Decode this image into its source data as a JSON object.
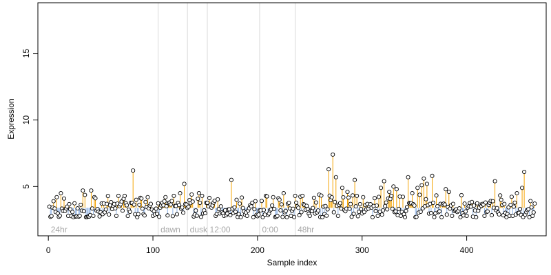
{
  "chart_data": {
    "type": "scatter",
    "title": "",
    "xlabel": "Sample index",
    "ylabel": "Expression",
    "xlim": [
      -10,
      476
    ],
    "ylim": [
      1.3,
      18.8
    ],
    "baseline": 3.4,
    "x_ticks": [
      0,
      100,
      200,
      300,
      400
    ],
    "y_ticks": [
      5,
      10,
      15
    ],
    "grid": false,
    "legend": "none",
    "colors": {
      "above": "#f5a300",
      "below": "#8fb3e6",
      "point_fill": "#ffffff",
      "point_stroke": "#000000",
      "divider": "#d9d9d9",
      "region_label": "#a8a8a8"
    },
    "regions": [
      {
        "label": "24hr",
        "start": 1
      },
      {
        "label": "dawn",
        "start": 106
      },
      {
        "label": "dusk",
        "start": 134
      },
      {
        "label": "12:00",
        "start": 153
      },
      {
        "label": "0:00",
        "start": 203
      },
      {
        "label": "48hr",
        "start": 237
      }
    ],
    "region_dividers": [
      105,
      133,
      152,
      202,
      236
    ],
    "peaks": [
      {
        "x": 5,
        "y": 3.9
      },
      {
        "x": 8,
        "y": 4.2
      },
      {
        "x": 12,
        "y": 4.5
      },
      {
        "x": 15,
        "y": 4.1
      },
      {
        "x": 33,
        "y": 4.7
      },
      {
        "x": 41,
        "y": 4.7
      },
      {
        "x": 44,
        "y": 4.2
      },
      {
        "x": 67,
        "y": 4.3
      },
      {
        "x": 73,
        "y": 4.3
      },
      {
        "x": 81,
        "y": 6.2
      },
      {
        "x": 89,
        "y": 4.1
      },
      {
        "x": 95,
        "y": 4.2
      },
      {
        "x": 112,
        "y": 4.2
      },
      {
        "x": 120,
        "y": 4.3
      },
      {
        "x": 126,
        "y": 4.5
      },
      {
        "x": 130,
        "y": 5.2
      },
      {
        "x": 137,
        "y": 4.4
      },
      {
        "x": 144,
        "y": 4.5
      },
      {
        "x": 147,
        "y": 4.3
      },
      {
        "x": 175,
        "y": 5.5
      },
      {
        "x": 180,
        "y": 4.0
      },
      {
        "x": 198,
        "y": 3.9
      },
      {
        "x": 208,
        "y": 4.3
      },
      {
        "x": 215,
        "y": 4.2
      },
      {
        "x": 225,
        "y": 4.5
      },
      {
        "x": 236,
        "y": 4.3
      },
      {
        "x": 243,
        "y": 4.3
      },
      {
        "x": 256,
        "y": 3.8
      },
      {
        "x": 268,
        "y": 6.3
      },
      {
        "x": 272,
        "y": 7.4
      },
      {
        "x": 275,
        "y": 5.7
      },
      {
        "x": 281,
        "y": 4.9
      },
      {
        "x": 286,
        "y": 4.6
      },
      {
        "x": 293,
        "y": 5.5
      },
      {
        "x": 301,
        "y": 4.2
      },
      {
        "x": 318,
        "y": 4.9
      },
      {
        "x": 321,
        "y": 5.4
      },
      {
        "x": 326,
        "y": 4.6
      },
      {
        "x": 330,
        "y": 5.0
      },
      {
        "x": 333,
        "y": 4.8
      },
      {
        "x": 344,
        "y": 5.7
      },
      {
        "x": 348,
        "y": 4.5
      },
      {
        "x": 353,
        "y": 4.9
      },
      {
        "x": 357,
        "y": 5.1
      },
      {
        "x": 359,
        "y": 5.6
      },
      {
        "x": 362,
        "y": 5.2
      },
      {
        "x": 367,
        "y": 5.8
      },
      {
        "x": 380,
        "y": 4.8
      },
      {
        "x": 383,
        "y": 4.6
      },
      {
        "x": 427,
        "y": 5.4
      },
      {
        "x": 433,
        "y": 4.0
      },
      {
        "x": 448,
        "y": 4.5
      },
      {
        "x": 453,
        "y": 4.9
      },
      {
        "x": 455,
        "y": 6.1
      }
    ],
    "troughs": [
      {
        "x": 19,
        "y": 2.8
      },
      {
        "x": 24,
        "y": 2.7
      },
      {
        "x": 30,
        "y": 2.8
      },
      {
        "x": 36,
        "y": 2.7
      },
      {
        "x": 58,
        "y": 2.9
      },
      {
        "x": 65,
        "y": 2.8
      },
      {
        "x": 85,
        "y": 2.7
      },
      {
        "x": 100,
        "y": 2.8
      },
      {
        "x": 140,
        "y": 2.9
      },
      {
        "x": 160,
        "y": 2.8
      },
      {
        "x": 168,
        "y": 2.8
      },
      {
        "x": 184,
        "y": 2.7
      },
      {
        "x": 190,
        "y": 2.8
      },
      {
        "x": 196,
        "y": 2.7
      },
      {
        "x": 205,
        "y": 2.7
      },
      {
        "x": 232,
        "y": 2.8
      },
      {
        "x": 250,
        "y": 2.8
      },
      {
        "x": 262,
        "y": 2.7
      },
      {
        "x": 277,
        "y": 2.8
      },
      {
        "x": 310,
        "y": 2.7
      },
      {
        "x": 315,
        "y": 2.8
      },
      {
        "x": 337,
        "y": 2.8
      },
      {
        "x": 341,
        "y": 2.7
      },
      {
        "x": 351,
        "y": 2.7
      },
      {
        "x": 376,
        "y": 2.7
      },
      {
        "x": 386,
        "y": 2.8
      },
      {
        "x": 394,
        "y": 2.7
      },
      {
        "x": 400,
        "y": 2.8
      },
      {
        "x": 409,
        "y": 2.7
      },
      {
        "x": 417,
        "y": 2.8
      },
      {
        "x": 438,
        "y": 2.7
      },
      {
        "x": 444,
        "y": 2.8
      },
      {
        "x": 460,
        "y": 2.7
      },
      {
        "x": 463,
        "y": 2.8
      }
    ],
    "n_points": 465,
    "y_range_normal": [
      2.7,
      4.4
    ],
    "seed": 20240517
  }
}
